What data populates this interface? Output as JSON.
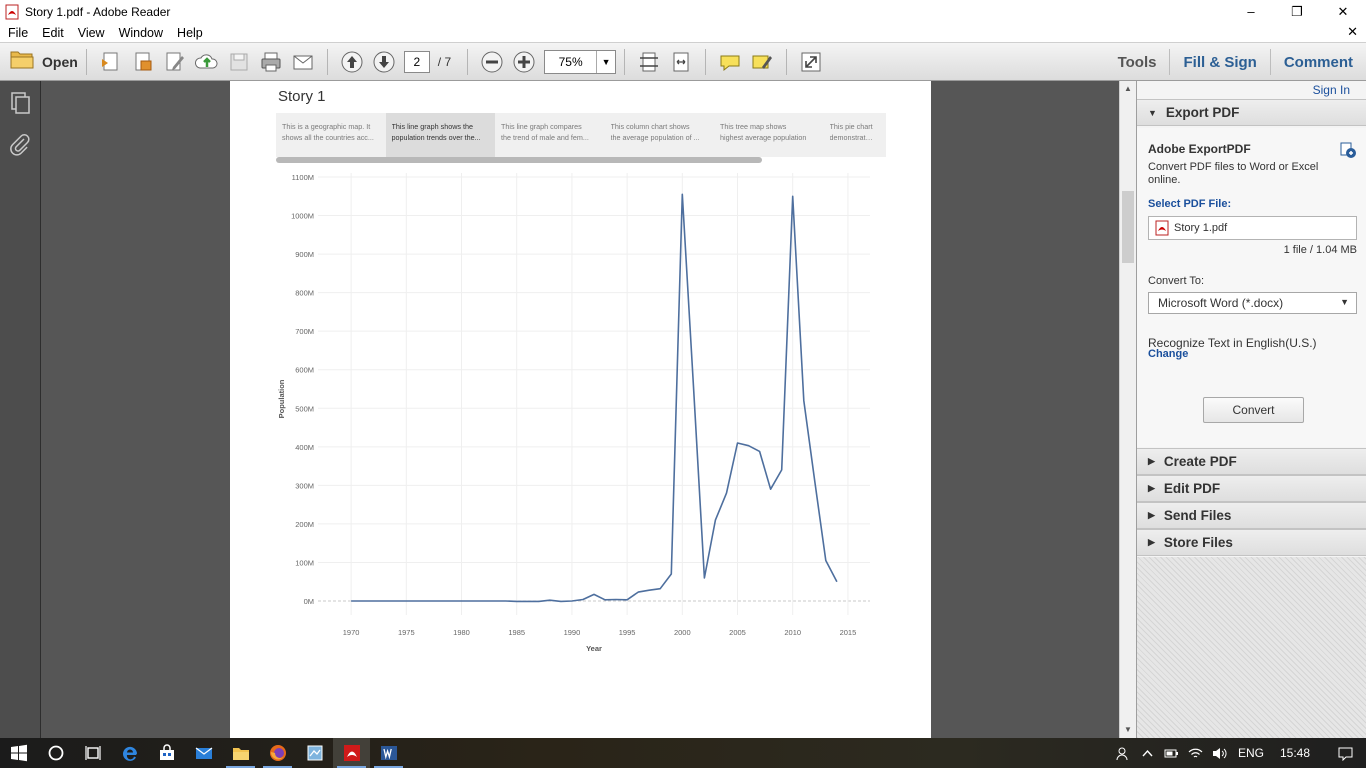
{
  "window": {
    "title": "Story 1.pdf - Adobe Reader"
  },
  "menu": {
    "items": [
      "File",
      "Edit",
      "View",
      "Window",
      "Help"
    ]
  },
  "toolbar": {
    "open_label": "Open",
    "page_current": "2",
    "page_total": "/ 7",
    "zoom": "75%",
    "tools_label": "Tools",
    "fill_sign_label": "Fill & Sign",
    "comment_label": "Comment"
  },
  "document": {
    "story_title": "Story 1",
    "story_points": [
      {
        "l1": "This is a geographic map.  It",
        "l2": "shows all the countries acc..."
      },
      {
        "l1": "This  line graph shows the",
        "l2": "population trends over the..."
      },
      {
        "l1": "This line graph compares",
        "l2": "the trend of male and fem..."
      },
      {
        "l1": "This column chart shows",
        "l2": "the average population of ..."
      },
      {
        "l1": "This tree map shows",
        "l2": "highest average population"
      },
      {
        "l1": "This pie chart",
        "l2": "demonstratio..."
      }
    ]
  },
  "chart_data": {
    "type": "line",
    "title": "",
    "xlabel": "Year",
    "ylabel": "Population",
    "x_ticks": [
      1970,
      1975,
      1980,
      1985,
      1990,
      1995,
      2000,
      2005,
      2010,
      2015
    ],
    "y_ticks": [
      "0M",
      "100M",
      "200M",
      "300M",
      "400M",
      "500M",
      "600M",
      "700M",
      "800M",
      "900M",
      "1000M",
      "1100M"
    ],
    "xlim": [
      1967,
      2017
    ],
    "ylim": [
      0,
      1100
    ],
    "grid": true,
    "color": "#4e6f9e",
    "series": [
      {
        "x": [
          1970,
          1971,
          1972,
          1973,
          1974,
          1975,
          1976,
          1977,
          1978,
          1979,
          1980,
          1981,
          1982,
          1983,
          1984,
          1985,
          1986,
          1987,
          1988,
          1989,
          1990,
          1991,
          1992,
          1993,
          1994,
          1995,
          1996,
          1997,
          1998,
          1999,
          2000,
          2001,
          2002,
          2003,
          2004,
          2005,
          2006,
          2007,
          2008,
          2009,
          2010,
          2011,
          2012,
          2013,
          2014
        ],
        "values": [
          0,
          0,
          0,
          0,
          0,
          0,
          0,
          0,
          0,
          0,
          0,
          0,
          0,
          0,
          0,
          -1,
          -1,
          -1,
          2,
          -1,
          0,
          4,
          17,
          3,
          4,
          3,
          23,
          28,
          32,
          70,
          1055,
          560,
          60,
          210,
          280,
          410,
          403,
          388,
          290,
          340,
          1050,
          520,
          310,
          105,
          50
        ]
      }
    ]
  },
  "rightpane": {
    "sign_in": "Sign In",
    "export_header": "Export PDF",
    "export_title": "Adobe ExportPDF",
    "export_desc": "Convert PDF files to Word or Excel online.",
    "select_label": "Select PDF File:",
    "file_name": "Story 1.pdf",
    "file_count": "1 file / 1.04 MB",
    "convert_to_label": "Convert To:",
    "convert_format": "Microsoft Word (*.docx)",
    "recognize_text": "Recognize Text in English(U.S.)",
    "change_label": "Change",
    "convert_button": "Convert",
    "sections": [
      "Create PDF",
      "Edit PDF",
      "Send Files",
      "Store Files"
    ]
  },
  "taskbar": {
    "lang": "ENG",
    "time": "15:48"
  }
}
